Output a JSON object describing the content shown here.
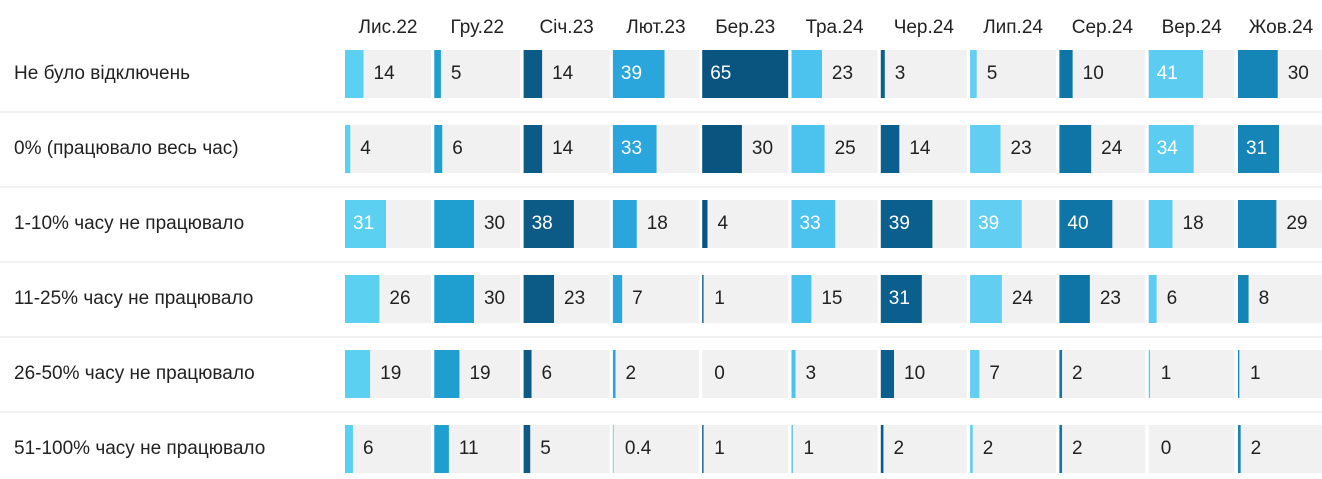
{
  "chart_data": {
    "type": "bar-table",
    "columns": [
      "Лис.22",
      "Гру.22",
      "Січ.23",
      "Лют.23",
      "Бер.23",
      "Тра.24",
      "Чер.24",
      "Лип.24",
      "Сер.24",
      "Вер.24",
      "Жов.24"
    ],
    "colors": [
      "#5bd0f0",
      "#1e9fd0",
      "#0c5a86",
      "#2aa6dc",
      "#0a5580",
      "#4cc2ee",
      "#0b5f8d",
      "#62cff2",
      "#0f74a6",
      "#5ccdf0",
      "#1585b8"
    ],
    "xlim": [
      0,
      65
    ],
    "series": [
      {
        "name": "Не було відключень",
        "values": [
          14,
          5,
          14,
          39,
          65,
          23,
          3,
          5,
          10,
          41,
          30
        ]
      },
      {
        "name": "0% (працювало весь час)",
        "values": [
          4,
          6,
          14,
          33,
          30,
          25,
          14,
          23,
          24,
          34,
          31
        ]
      },
      {
        "name": "1-10% часу не працювало",
        "values": [
          31,
          30,
          38,
          18,
          4,
          33,
          39,
          39,
          40,
          18,
          29
        ]
      },
      {
        "name": "11-25% часу не працювало",
        "values": [
          26,
          30,
          23,
          7,
          1,
          15,
          31,
          24,
          23,
          6,
          8
        ]
      },
      {
        "name": "26-50% часу не працювало",
        "values": [
          19,
          19,
          6,
          2,
          0,
          3,
          10,
          7,
          2,
          1,
          1
        ]
      },
      {
        "name": "51-100% часу не працювало",
        "values": [
          6,
          11,
          5,
          0.4,
          1,
          1,
          2,
          2,
          2,
          0,
          2
        ]
      }
    ]
  }
}
